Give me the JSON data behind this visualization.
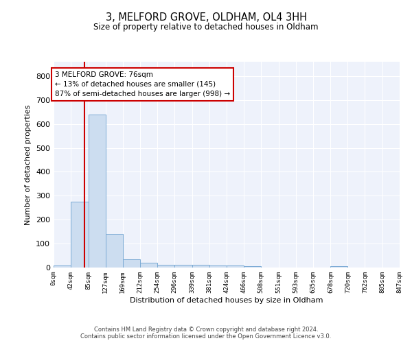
{
  "title": "3, MELFORD GROVE, OLDHAM, OL4 3HH",
  "subtitle": "Size of property relative to detached houses in Oldham",
  "xlabel": "Distribution of detached houses by size in Oldham",
  "ylabel": "Number of detached properties",
  "bin_edges": [
    0,
    42,
    85,
    127,
    169,
    212,
    254,
    296,
    339,
    381,
    424,
    466,
    508,
    551,
    593,
    635,
    678,
    720,
    762,
    805,
    847
  ],
  "bar_heights": [
    8,
    275,
    640,
    140,
    35,
    20,
    12,
    11,
    11,
    10,
    10,
    5,
    0,
    0,
    0,
    0,
    7,
    0,
    0,
    0
  ],
  "bar_color": "#ccddf0",
  "bar_edgecolor": "#7aaad4",
  "property_size": 76,
  "vline_color": "#cc0000",
  "annotation_text": "3 MELFORD GROVE: 76sqm\n← 13% of detached houses are smaller (145)\n87% of semi-detached houses are larger (998) →",
  "annotation_box_color": "#ffffff",
  "annotation_box_edgecolor": "#cc0000",
  "ylim": [
    0,
    860
  ],
  "yticks": [
    0,
    100,
    200,
    300,
    400,
    500,
    600,
    700,
    800
  ],
  "background_color": "#eef2fb",
  "grid_color": "#ffffff",
  "footer_line1": "Contains HM Land Registry data © Crown copyright and database right 2024.",
  "footer_line2": "Contains public sector information licensed under the Open Government Licence v3.0."
}
